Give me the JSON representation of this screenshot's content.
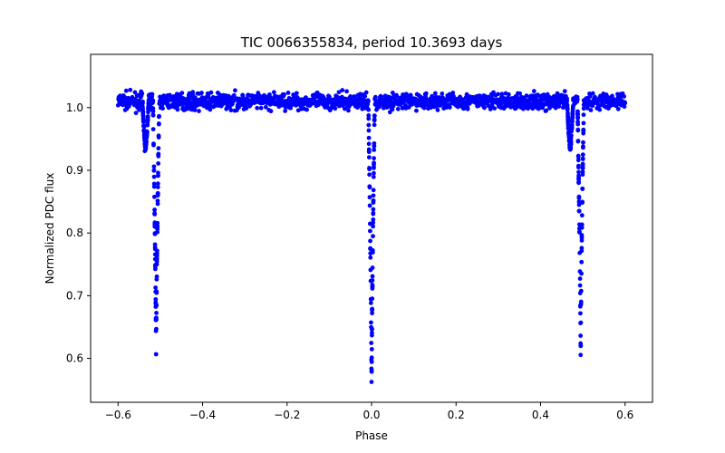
{
  "chart_data": {
    "type": "scatter",
    "title": "TIC 0066355834, period 10.3693 days",
    "xlabel": "Phase",
    "ylabel": "Normalized PDC flux",
    "xlim": [
      -0.665,
      0.665
    ],
    "ylim": [
      0.53,
      1.085
    ],
    "grid": false,
    "legend": "none",
    "x_ticks": [
      -0.6,
      -0.4,
      -0.2,
      0.0,
      0.2,
      0.4,
      0.6
    ],
    "x_tick_labels": [
      "−0.6",
      "−0.4",
      "−0.2",
      "0.0",
      "0.2",
      "0.4",
      "0.6"
    ],
    "y_ticks": [
      0.6,
      0.7,
      0.8,
      0.9,
      1.0
    ],
    "y_tick_labels": [
      "0.6",
      "0.7",
      "0.8",
      "0.9",
      "1.0"
    ],
    "series": [
      {
        "name": "PDC flux",
        "color": "#0000ff",
        "marker": "circle",
        "x_range": [
          -0.6,
          0.6
        ],
        "baseline_flux": 1.01,
        "primary_eclipses": [
          {
            "phase": -0.51,
            "min_flux": 0.605
          },
          {
            "phase": 0.0,
            "min_flux": 0.55
          },
          {
            "phase": 0.495,
            "min_flux": 0.605
          }
        ],
        "secondary_dips": [
          {
            "phase": -0.535,
            "min_flux": 0.935
          },
          {
            "phase": 0.47,
            "min_flux": 0.935
          }
        ]
      }
    ]
  }
}
